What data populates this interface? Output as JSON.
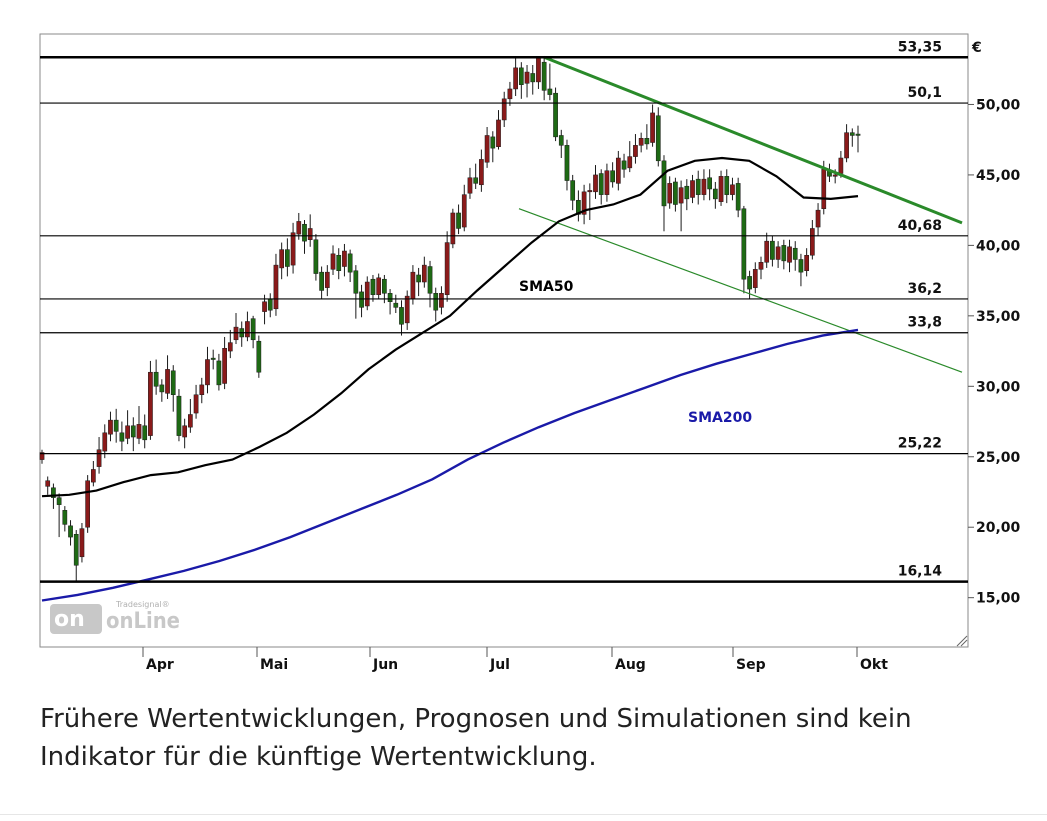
{
  "chart_data": {
    "type": "candlestick",
    "currency_label": "€",
    "x_ticks": [
      "Apr",
      "Mai",
      "Jun",
      "Jul",
      "Aug",
      "Sep",
      "Okt"
    ],
    "y_ticks": [
      "15,00",
      "20,00",
      "25,00",
      "30,00",
      "35,00",
      "40,00",
      "45,00",
      "50,00"
    ],
    "ylim": [
      11.5,
      55.0
    ],
    "levels": [
      {
        "value": 53.35,
        "label": "53,35",
        "bold": true
      },
      {
        "value": 50.1,
        "label": "50,1",
        "bold": false
      },
      {
        "value": 40.68,
        "label": "40,68",
        "bold": false
      },
      {
        "value": 36.2,
        "label": "36,2",
        "bold": false
      },
      {
        "value": 33.8,
        "label": "33,8",
        "bold": false
      },
      {
        "value": 25.22,
        "label": "25,22",
        "bold": false
      },
      {
        "value": 16.14,
        "label": "16,14",
        "bold": true
      }
    ],
    "series": [
      {
        "name": "SMA50",
        "color": "#000000",
        "values": [
          22.2,
          22.3,
          22.6,
          23.2,
          23.7,
          23.9,
          24.4,
          24.8,
          25.7,
          26.7,
          28.0,
          29.5,
          31.2,
          32.6,
          33.8,
          35.0,
          36.8,
          38.5,
          40.2,
          41.7,
          42.5,
          42.9,
          43.6,
          45.3,
          46.0,
          46.2,
          46.0,
          44.9,
          43.4,
          43.3,
          43.5
        ]
      },
      {
        "name": "SMA200",
        "color": "#1a1aa8",
        "values": [
          14.8,
          15.2,
          15.7,
          16.3,
          16.9,
          17.6,
          18.4,
          19.3,
          20.3,
          21.3,
          22.3,
          23.4,
          24.8,
          26.0,
          27.1,
          28.1,
          29.0,
          29.9,
          30.8,
          31.6,
          32.3,
          33.0,
          33.6,
          34.0
        ]
      }
    ],
    "candles": [
      [
        24.8,
        25.3,
        25.5,
        24.5
      ],
      [
        22.9,
        23.3,
        23.6,
        22.3
      ],
      [
        22.8,
        22.1,
        23.1,
        21.3
      ],
      [
        22.1,
        21.6,
        22.4,
        19.3
      ],
      [
        21.2,
        20.2,
        21.5,
        19.7
      ],
      [
        20.1,
        19.3,
        20.5,
        18.7
      ],
      [
        19.5,
        17.3,
        19.8,
        16.1
      ],
      [
        17.9,
        19.9,
        20.3,
        17.5
      ],
      [
        20.0,
        23.3,
        23.7,
        19.6
      ],
      [
        23.2,
        24.1,
        24.7,
        22.9
      ],
      [
        24.3,
        25.5,
        26.4,
        23.8
      ],
      [
        25.4,
        26.7,
        27.3,
        24.9
      ],
      [
        26.6,
        27.6,
        28.2,
        26.1
      ],
      [
        27.6,
        26.8,
        28.4,
        26.0
      ],
      [
        26.7,
        26.1,
        27.5,
        25.4
      ],
      [
        26.3,
        27.2,
        28.3,
        25.9
      ],
      [
        27.2,
        26.4,
        27.8,
        25.4
      ],
      [
        26.3,
        27.3,
        28.6,
        25.9
      ],
      [
        27.2,
        26.2,
        28.0,
        25.6
      ],
      [
        26.5,
        31.0,
        31.8,
        26.2
      ],
      [
        31.0,
        30.0,
        31.9,
        29.4
      ],
      [
        30.1,
        29.6,
        30.5,
        28.9
      ],
      [
        29.5,
        31.2,
        32.2,
        29.1
      ],
      [
        31.1,
        29.4,
        31.5,
        28.2
      ],
      [
        29.3,
        26.5,
        29.8,
        26.1
      ],
      [
        26.4,
        27.2,
        27.7,
        25.6
      ],
      [
        27.1,
        28.0,
        29.1,
        26.7
      ],
      [
        28.1,
        29.4,
        30.1,
        27.7
      ],
      [
        29.4,
        30.1,
        30.6,
        28.8
      ],
      [
        30.1,
        31.9,
        32.8,
        29.5
      ],
      [
        32.0,
        31.9,
        32.6,
        31.2
      ],
      [
        31.8,
        30.1,
        32.3,
        29.7
      ],
      [
        30.2,
        32.7,
        33.5,
        29.8
      ],
      [
        32.5,
        33.1,
        34.0,
        32.0
      ],
      [
        33.3,
        34.2,
        35.2,
        33.0
      ],
      [
        34.1,
        33.5,
        34.6,
        32.8
      ],
      [
        33.5,
        34.6,
        35.3,
        33.2
      ],
      [
        34.8,
        33.3,
        35.0,
        32.7
      ],
      [
        33.2,
        31.0,
        33.6,
        30.6
      ],
      [
        35.3,
        36.0,
        36.5,
        34.4
      ],
      [
        36.2,
        35.4,
        36.6,
        34.9
      ],
      [
        35.5,
        38.6,
        39.4,
        35.0
      ],
      [
        38.4,
        39.7,
        40.2,
        37.6
      ],
      [
        39.7,
        38.5,
        40.5,
        37.8
      ],
      [
        38.6,
        40.9,
        41.6,
        38.0
      ],
      [
        40.8,
        41.7,
        42.3,
        40.4
      ],
      [
        41.5,
        40.3,
        41.8,
        39.4
      ],
      [
        40.4,
        41.2,
        42.2,
        39.9
      ],
      [
        40.4,
        38.0,
        40.8,
        37.5
      ],
      [
        38.1,
        36.8,
        38.5,
        36.2
      ],
      [
        37.0,
        38.1,
        38.6,
        36.4
      ],
      [
        38.3,
        39.4,
        40.0,
        37.9
      ],
      [
        39.3,
        38.2,
        39.8,
        37.6
      ],
      [
        38.5,
        39.6,
        40.1,
        37.8
      ],
      [
        39.4,
        38.1,
        39.7,
        37.4
      ],
      [
        38.2,
        36.6,
        38.6,
        34.8
      ],
      [
        36.7,
        35.6,
        37.2,
        34.9
      ],
      [
        35.7,
        37.4,
        37.8,
        35.4
      ],
      [
        37.6,
        36.5,
        37.9,
        36.0
      ],
      [
        36.5,
        37.7,
        38.0,
        36.2
      ],
      [
        37.6,
        36.6,
        37.9,
        35.9
      ],
      [
        36.6,
        36.0,
        36.9,
        35.1
      ],
      [
        35.9,
        35.6,
        36.5,
        35.2
      ],
      [
        35.6,
        34.4,
        36.1,
        33.6
      ],
      [
        34.5,
        36.4,
        36.8,
        34.0
      ],
      [
        36.2,
        38.1,
        38.6,
        35.8
      ],
      [
        37.9,
        37.4,
        38.4,
        36.4
      ],
      [
        37.4,
        38.6,
        39.2,
        37.0
      ],
      [
        38.5,
        36.6,
        38.9,
        35.6
      ],
      [
        36.6,
        35.4,
        37.0,
        34.6
      ],
      [
        35.6,
        36.6,
        37.1,
        35.1
      ],
      [
        36.5,
        40.2,
        41.0,
        36.0
      ],
      [
        40.1,
        42.3,
        42.6,
        39.8
      ],
      [
        42.3,
        41.2,
        42.9,
        40.8
      ],
      [
        41.3,
        43.6,
        44.3,
        41.0
      ],
      [
        43.7,
        44.8,
        45.5,
        43.3
      ],
      [
        44.8,
        44.4,
        45.8,
        44.0
      ],
      [
        44.3,
        46.1,
        46.8,
        43.8
      ],
      [
        45.9,
        47.8,
        48.4,
        45.5
      ],
      [
        47.7,
        46.9,
        48.1,
        45.9
      ],
      [
        47.0,
        48.9,
        49.6,
        46.8
      ],
      [
        48.9,
        50.4,
        50.9,
        48.4
      ],
      [
        50.4,
        51.1,
        51.6,
        49.9
      ],
      [
        51.1,
        52.6,
        53.3,
        50.6
      ],
      [
        52.6,
        51.4,
        53.0,
        50.4
      ],
      [
        51.5,
        52.3,
        52.8,
        50.5
      ],
      [
        52.2,
        51.6,
        52.8,
        50.7
      ],
      [
        51.6,
        53.3,
        53.4,
        51.1
      ],
      [
        53.0,
        51.0,
        53.4,
        50.3
      ],
      [
        51.1,
        50.7,
        52.9,
        50.3
      ],
      [
        50.8,
        47.7,
        51.2,
        47.4
      ],
      [
        47.8,
        47.1,
        48.2,
        46.2
      ],
      [
        47.1,
        44.6,
        47.5,
        43.9
      ],
      [
        44.6,
        43.2,
        45.0,
        42.5
      ],
      [
        43.2,
        42.2,
        43.9,
        41.7
      ],
      [
        42.2,
        43.8,
        44.3,
        41.5
      ],
      [
        43.8,
        43.9,
        44.4,
        41.8
      ],
      [
        43.8,
        45.0,
        45.7,
        43.3
      ],
      [
        45.1,
        43.6,
        45.4,
        42.9
      ],
      [
        43.6,
        45.3,
        45.8,
        43.1
      ],
      [
        45.3,
        44.5,
        45.9,
        44.1
      ],
      [
        44.4,
        46.2,
        46.7,
        43.9
      ],
      [
        46.0,
        45.4,
        46.5,
        44.8
      ],
      [
        45.5,
        46.3,
        47.4,
        45.2
      ],
      [
        46.3,
        47.1,
        47.9,
        45.8
      ],
      [
        47.1,
        47.6,
        48.0,
        46.6
      ],
      [
        47.6,
        47.2,
        48.6,
        46.8
      ],
      [
        47.3,
        49.4,
        50.0,
        47.0
      ],
      [
        49.2,
        46.0,
        49.8,
        45.6
      ],
      [
        46.0,
        42.8,
        46.4,
        41.0
      ],
      [
        43.0,
        44.4,
        44.9,
        42.6
      ],
      [
        44.5,
        42.9,
        44.8,
        42.4
      ],
      [
        43.0,
        44.1,
        44.6,
        41.0
      ],
      [
        44.2,
        43.3,
        44.7,
        42.5
      ],
      [
        43.4,
        44.6,
        45.0,
        43.0
      ],
      [
        44.7,
        43.6,
        45.3,
        42.9
      ],
      [
        43.6,
        44.7,
        45.4,
        43.2
      ],
      [
        44.8,
        44.0,
        45.4,
        43.2
      ],
      [
        44.0,
        43.3,
        44.5,
        42.6
      ],
      [
        43.1,
        44.9,
        45.3,
        42.8
      ],
      [
        44.9,
        43.6,
        45.4,
        43.0
      ],
      [
        43.6,
        44.3,
        44.8,
        43.2
      ],
      [
        44.4,
        42.5,
        44.8,
        42.0
      ],
      [
        42.6,
        37.6,
        42.8,
        36.6
      ],
      [
        37.8,
        36.9,
        38.2,
        36.2
      ],
      [
        37.0,
        38.3,
        38.8,
        36.6
      ],
      [
        38.3,
        38.8,
        39.2,
        37.6
      ],
      [
        38.8,
        40.3,
        40.9,
        38.4
      ],
      [
        40.3,
        39.0,
        40.7,
        38.5
      ],
      [
        39.0,
        39.9,
        40.3,
        38.4
      ],
      [
        40.0,
        38.9,
        40.4,
        38.3
      ],
      [
        38.8,
        39.9,
        40.4,
        38.1
      ],
      [
        39.8,
        39.0,
        40.3,
        38.2
      ],
      [
        39.0,
        38.1,
        39.4,
        37.1
      ],
      [
        38.2,
        39.3,
        39.8,
        37.8
      ],
      [
        39.3,
        41.2,
        41.8,
        39.0
      ],
      [
        41.3,
        42.5,
        43.0,
        40.7
      ],
      [
        42.6,
        45.4,
        46.0,
        42.2
      ],
      [
        45.3,
        44.9,
        45.8,
        44.5
      ],
      [
        44.9,
        45.0,
        45.4,
        44.4
      ],
      [
        45.1,
        46.2,
        46.7,
        44.8
      ],
      [
        46.2,
        48.0,
        48.6,
        45.9
      ],
      [
        48.0,
        47.8,
        48.3,
        47.0
      ],
      [
        47.9,
        47.8,
        48.5,
        46.6
      ]
    ]
  },
  "watermark": {
    "main": "onLine",
    "sub": "Tradesignal®"
  },
  "disclaimer": {
    "line1": "Frühere Wertentwicklungen, Prognosen und Simulationen sind kein",
    "line2": "Indikator für die künftige Wertentwicklung."
  },
  "colors": {
    "up": "#8a1a1a",
    "down": "#1e6a14",
    "trend": "#2a8a2a",
    "sma50": "#000000",
    "sma200": "#1a1aa8"
  }
}
